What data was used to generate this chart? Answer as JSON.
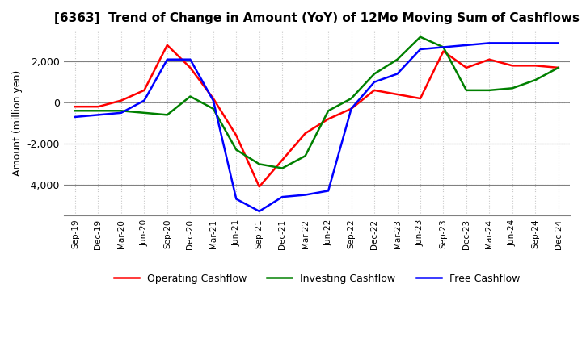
{
  "title": "[6363]  Trend of Change in Amount (YoY) of 12Mo Moving Sum of Cashflows",
  "ylabel": "Amount (million yen)",
  "x_labels": [
    "Sep-19",
    "Dec-19",
    "Mar-20",
    "Jun-20",
    "Sep-20",
    "Dec-20",
    "Mar-21",
    "Jun-21",
    "Sep-21",
    "Dec-21",
    "Mar-22",
    "Jun-22",
    "Sep-22",
    "Dec-22",
    "Mar-23",
    "Jun-23",
    "Sep-23",
    "Dec-23",
    "Mar-24",
    "Jun-24",
    "Sep-24",
    "Dec-24"
  ],
  "operating": [
    -200,
    -200,
    100,
    600,
    2800,
    1700,
    200,
    -1600,
    -4100,
    -2800,
    -1500,
    -800,
    -300,
    600,
    400,
    200,
    2500,
    1700,
    2100,
    1800,
    1800,
    1700
  ],
  "investing": [
    -400,
    -400,
    -400,
    -500,
    -600,
    300,
    -300,
    -2300,
    -3000,
    -3200,
    -2600,
    -400,
    200,
    1400,
    2100,
    3200,
    2700,
    600,
    600,
    700,
    1100,
    1700
  ],
  "free": [
    -700,
    -600,
    -500,
    100,
    2100,
    2100,
    100,
    -4700,
    -5300,
    -4600,
    -4500,
    -4300,
    -300,
    1000,
    1400,
    2600,
    2700,
    2800,
    2900,
    2900,
    2900,
    2900
  ],
  "operating_color": "#ff0000",
  "investing_color": "#008000",
  "free_color": "#0000ff",
  "ylim": [
    -5500,
    3500
  ],
  "yticks": [
    -4000,
    -2000,
    0,
    2000
  ],
  "grid_color": "#c8c8c8",
  "grid_style": "dotted",
  "background_color": "#ffffff",
  "zero_line_color": "#808080"
}
